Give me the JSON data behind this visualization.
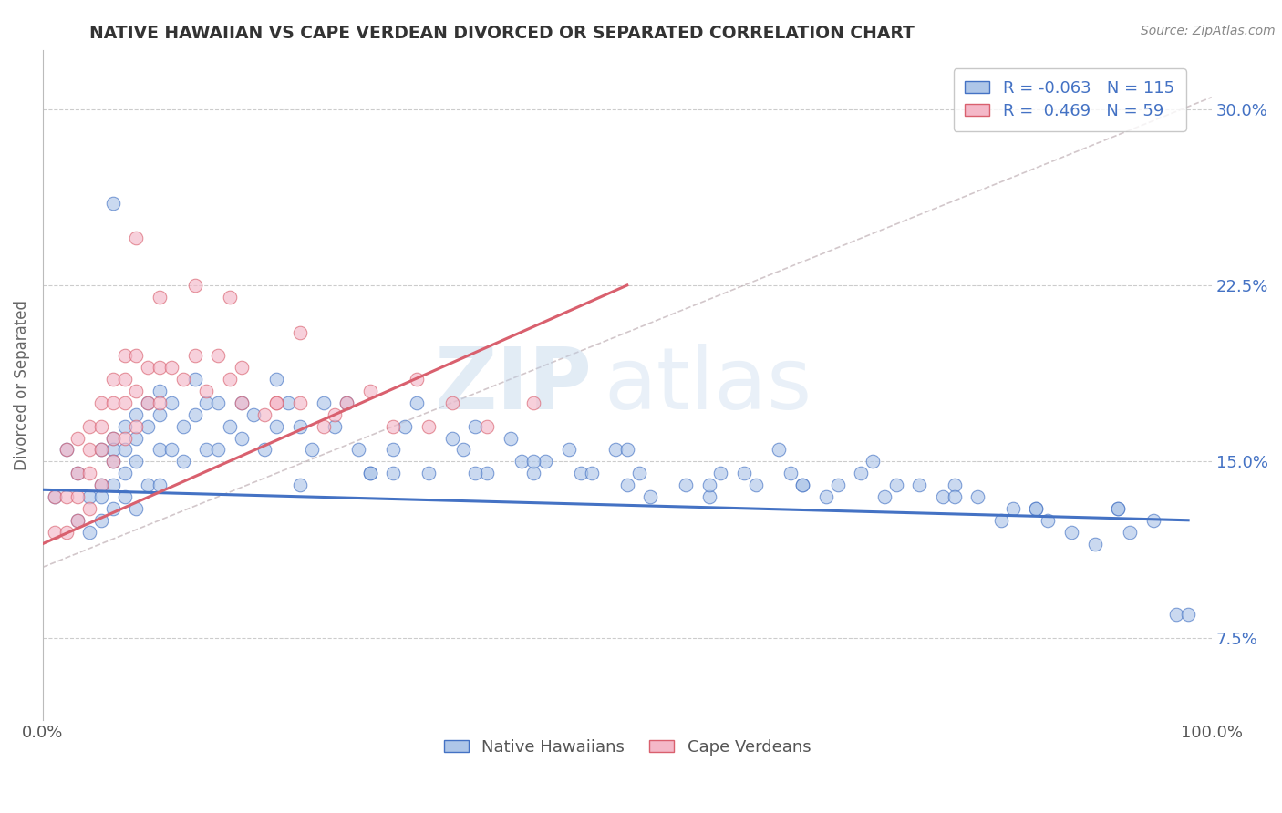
{
  "title": "NATIVE HAWAIIAN VS CAPE VERDEAN DIVORCED OR SEPARATED CORRELATION CHART",
  "source_text": "Source: ZipAtlas.com",
  "ylabel": "Divorced or Separated",
  "xlabel": "",
  "watermark_zip": "ZIP",
  "watermark_atlas": "atlas",
  "xmin": 0.0,
  "xmax": 1.0,
  "ymin": 0.04,
  "ymax": 0.325,
  "yticks": [
    0.075,
    0.15,
    0.225,
    0.3
  ],
  "ytick_labels": [
    "7.5%",
    "15.0%",
    "22.5%",
    "30.0%"
  ],
  "blue_R": -0.063,
  "blue_N": 115,
  "pink_R": 0.469,
  "pink_N": 59,
  "blue_color": "#aec6e8",
  "pink_color": "#f4b8c8",
  "blue_line_color": "#4472c4",
  "pink_line_color": "#d9606e",
  "gray_dash_color": "#c8a0a8",
  "title_color": "#333333",
  "background_color": "#ffffff",
  "grid_color": "#cccccc",
  "ytick_color": "#4472c4",
  "xtick_color": "#555555",
  "legend_R_color": "#4472c4",
  "legend_N_color": "#333333",
  "source_color": "#888888",
  "blue_scatter_x": [
    0.01,
    0.02,
    0.03,
    0.03,
    0.04,
    0.04,
    0.05,
    0.05,
    0.05,
    0.05,
    0.06,
    0.06,
    0.06,
    0.06,
    0.06,
    0.07,
    0.07,
    0.07,
    0.07,
    0.08,
    0.08,
    0.08,
    0.08,
    0.09,
    0.09,
    0.09,
    0.1,
    0.1,
    0.1,
    0.1,
    0.11,
    0.11,
    0.12,
    0.12,
    0.13,
    0.14,
    0.14,
    0.15,
    0.15,
    0.16,
    0.17,
    0.18,
    0.19,
    0.2,
    0.2,
    0.21,
    0.22,
    0.23,
    0.24,
    0.25,
    0.26,
    0.27,
    0.28,
    0.3,
    0.31,
    0.32,
    0.33,
    0.35,
    0.36,
    0.37,
    0.38,
    0.4,
    0.41,
    0.42,
    0.43,
    0.45,
    0.46,
    0.47,
    0.49,
    0.5,
    0.51,
    0.52,
    0.55,
    0.57,
    0.58,
    0.6,
    0.61,
    0.63,
    0.64,
    0.65,
    0.67,
    0.68,
    0.7,
    0.71,
    0.73,
    0.75,
    0.77,
    0.78,
    0.8,
    0.82,
    0.83,
    0.85,
    0.86,
    0.88,
    0.9,
    0.92,
    0.93,
    0.95,
    0.97,
    0.13,
    0.17,
    0.22,
    0.28,
    0.3,
    0.37,
    0.42,
    0.5,
    0.57,
    0.65,
    0.72,
    0.78,
    0.85,
    0.92,
    0.98,
    0.06
  ],
  "blue_scatter_y": [
    0.135,
    0.155,
    0.145,
    0.125,
    0.135,
    0.12,
    0.155,
    0.14,
    0.135,
    0.125,
    0.16,
    0.155,
    0.15,
    0.14,
    0.13,
    0.165,
    0.155,
    0.145,
    0.135,
    0.17,
    0.16,
    0.15,
    0.13,
    0.175,
    0.165,
    0.14,
    0.18,
    0.17,
    0.155,
    0.14,
    0.175,
    0.155,
    0.165,
    0.15,
    0.17,
    0.175,
    0.155,
    0.175,
    0.155,
    0.165,
    0.16,
    0.17,
    0.155,
    0.185,
    0.165,
    0.175,
    0.165,
    0.155,
    0.175,
    0.165,
    0.175,
    0.155,
    0.145,
    0.145,
    0.165,
    0.175,
    0.145,
    0.16,
    0.155,
    0.165,
    0.145,
    0.16,
    0.15,
    0.145,
    0.15,
    0.155,
    0.145,
    0.145,
    0.155,
    0.14,
    0.145,
    0.135,
    0.14,
    0.135,
    0.145,
    0.145,
    0.14,
    0.155,
    0.145,
    0.14,
    0.135,
    0.14,
    0.145,
    0.15,
    0.14,
    0.14,
    0.135,
    0.14,
    0.135,
    0.125,
    0.13,
    0.13,
    0.125,
    0.12,
    0.115,
    0.13,
    0.12,
    0.125,
    0.085,
    0.185,
    0.175,
    0.14,
    0.145,
    0.155,
    0.145,
    0.15,
    0.155,
    0.14,
    0.14,
    0.135,
    0.135,
    0.13,
    0.13,
    0.085,
    0.26
  ],
  "pink_scatter_x": [
    0.01,
    0.01,
    0.02,
    0.02,
    0.02,
    0.03,
    0.03,
    0.03,
    0.03,
    0.04,
    0.04,
    0.04,
    0.04,
    0.05,
    0.05,
    0.05,
    0.05,
    0.06,
    0.06,
    0.06,
    0.06,
    0.07,
    0.07,
    0.07,
    0.07,
    0.08,
    0.08,
    0.08,
    0.09,
    0.09,
    0.1,
    0.1,
    0.11,
    0.12,
    0.13,
    0.14,
    0.15,
    0.16,
    0.17,
    0.19,
    0.2,
    0.22,
    0.24,
    0.26,
    0.28,
    0.3,
    0.33,
    0.35,
    0.38,
    0.42,
    0.1,
    0.13,
    0.16,
    0.2,
    0.25,
    0.32,
    0.22,
    0.17,
    0.08
  ],
  "pink_scatter_y": [
    0.135,
    0.12,
    0.155,
    0.135,
    0.12,
    0.16,
    0.145,
    0.135,
    0.125,
    0.165,
    0.155,
    0.145,
    0.13,
    0.175,
    0.165,
    0.155,
    0.14,
    0.185,
    0.175,
    0.16,
    0.15,
    0.195,
    0.185,
    0.175,
    0.16,
    0.195,
    0.18,
    0.165,
    0.19,
    0.175,
    0.19,
    0.175,
    0.19,
    0.185,
    0.195,
    0.18,
    0.195,
    0.185,
    0.175,
    0.17,
    0.175,
    0.175,
    0.165,
    0.175,
    0.18,
    0.165,
    0.165,
    0.175,
    0.165,
    0.175,
    0.22,
    0.225,
    0.22,
    0.175,
    0.17,
    0.185,
    0.205,
    0.19,
    0.245
  ],
  "blue_line_x": [
    0.0,
    0.98
  ],
  "blue_line_y_start": 0.138,
  "blue_line_y_end": 0.125,
  "pink_line_x": [
    0.0,
    0.5
  ],
  "pink_line_y_start": 0.115,
  "pink_line_y_end": 0.225,
  "gray_dash_line_x": [
    0.0,
    1.0
  ],
  "gray_dash_line_y_start": 0.105,
  "gray_dash_line_y_end": 0.305
}
